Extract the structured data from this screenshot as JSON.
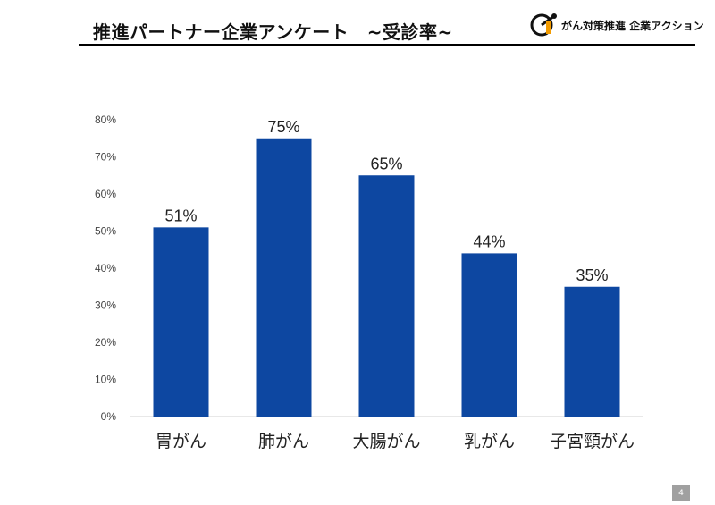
{
  "header": {
    "title": "推進パートナー企業アンケート　~受診率~",
    "logo_text": "がん対策推進 企業アクション"
  },
  "chart_data": {
    "type": "bar",
    "title": "",
    "categories": [
      "胃がん",
      "肺がん",
      "大腸がん",
      "乳がん",
      "子宮頸がん"
    ],
    "values": [
      51,
      75,
      65,
      44,
      35
    ],
    "value_labels": [
      "51%",
      "75%",
      "65%",
      "44%",
      "35%"
    ],
    "ylim": [
      0,
      80
    ],
    "yticks": [
      0,
      10,
      20,
      30,
      40,
      50,
      60,
      70,
      80
    ],
    "ytick_labels": [
      "0%",
      "10%",
      "20%",
      "30%",
      "40%",
      "50%",
      "60%",
      "70%",
      "80%"
    ],
    "xlabel": "",
    "ylabel": "",
    "bar_color": "#0d47a1",
    "grid": false
  },
  "footer": {
    "page_number": "4"
  }
}
